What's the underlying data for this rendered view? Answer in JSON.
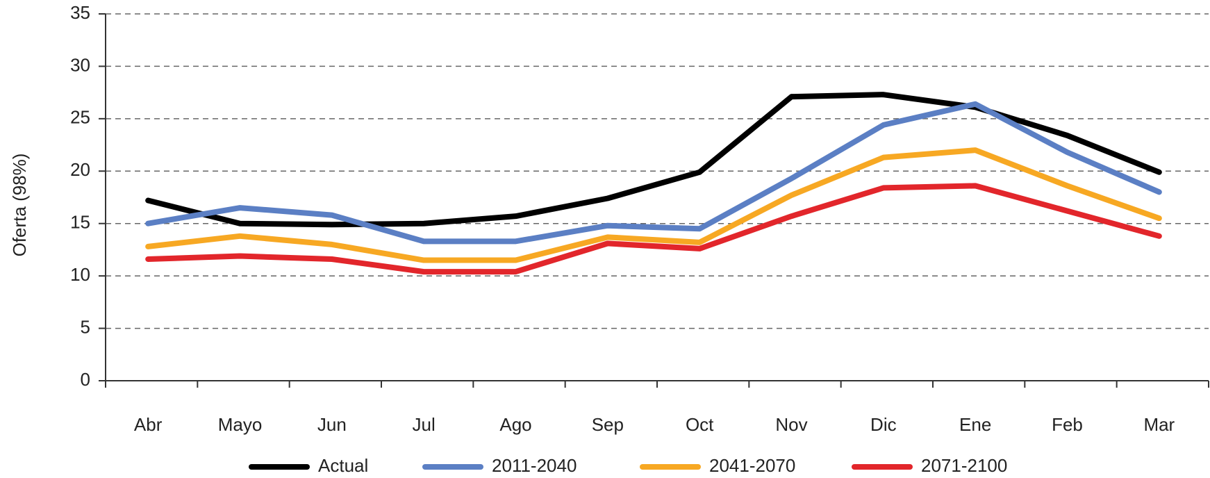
{
  "chart_data": {
    "type": "line",
    "y_label": "Oferta (98%)",
    "categories": [
      "Abr",
      "Mayo",
      "Jun",
      "Jul",
      "Ago",
      "Sep",
      "Oct",
      "Nov",
      "Dic",
      "Ene",
      "Feb",
      "Mar"
    ],
    "series": [
      {
        "name": "Actual",
        "color": "#000000",
        "values": [
          17.2,
          15,
          14.9,
          15,
          15.7,
          17.4,
          19.9,
          27.1,
          27.3,
          26.1,
          23.4,
          19.9
        ]
      },
      {
        "name": "2011-2040",
        "color": "#5b7fc4",
        "values": [
          15,
          16.5,
          15.8,
          13.3,
          13.3,
          14.8,
          14.5,
          19.3,
          24.4,
          26.4,
          21.8,
          18
        ]
      },
      {
        "name": "2041-2070",
        "color": "#f7a823",
        "values": [
          12.8,
          13.8,
          13,
          11.5,
          11.5,
          13.7,
          13.2,
          17.7,
          21.3,
          22,
          18.6,
          15.5
        ]
      },
      {
        "name": "2071-2100",
        "color": "#e2262b",
        "values": [
          11.6,
          11.9,
          11.6,
          10.4,
          10.4,
          13.1,
          12.6,
          15.7,
          18.4,
          18.6,
          16.2,
          13.8
        ]
      }
    ],
    "ylim": [
      0,
      35
    ],
    "yticks": [
      0,
      5,
      10,
      15,
      20,
      25,
      30,
      35
    ],
    "grid": true
  }
}
